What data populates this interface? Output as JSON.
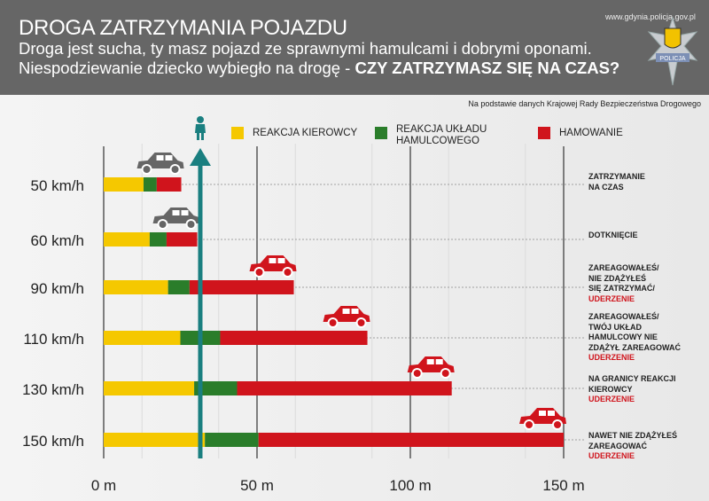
{
  "header": {
    "title": "DROGA ZATRZYMANIA POJAZDU",
    "line1": "Droga jest sucha, ty masz pojazd ze sprawnymi hamulcami i dobrymi oponami.",
    "line2_plain": "Niespodziewanie dziecko wybiegło na drogę - ",
    "line2_bold": "CZY ZATRZYMASZ SIĘ NA CZAS?",
    "url": "www.gdynia.policja.gov.pl",
    "badge": "POLICJA"
  },
  "source": "Na podstawie danych Krajowej Rady Bezpieczeństwa Drogowego",
  "colors": {
    "reaction": "#f5c800",
    "brake_system": "#2a7d2a",
    "braking": "#d0141c",
    "child": "#1a7f80"
  },
  "chart_data": {
    "type": "bar",
    "stacked": true,
    "orientation": "horizontal",
    "title": "DROGA ZATRZYMANIA POJAZDU",
    "categories": [
      "50 km/h",
      "60 km/h",
      "90 km/h",
      "110 km/h",
      "130 km/h",
      "150 km/h"
    ],
    "series": [
      {
        "name": "REAKCJA KIEROWCY",
        "values": [
          13,
          15,
          21,
          25,
          29.5,
          33
        ]
      },
      {
        "name": "REAKCJA UKŁADU HAMULCOWEGO",
        "values": [
          4.3,
          5.5,
          7,
          13,
          14,
          17.5
        ]
      },
      {
        "name": "HAMOWANIE",
        "values": [
          8,
          10,
          34,
          48,
          70,
          99.5
        ]
      }
    ],
    "child_position_m": 31.5,
    "xlim": [
      0,
      150
    ],
    "xticks": [
      "0 m",
      "50 m",
      "100 m",
      "150 m"
    ],
    "xtick_values": [
      0,
      50,
      100,
      150
    ],
    "legend": "top",
    "outcomes": [
      {
        "lines": [
          "ZATRZYMANIE",
          "NA CZAS"
        ],
        "impact": ""
      },
      {
        "lines": [
          "DOTKNIĘCIE"
        ],
        "impact": ""
      },
      {
        "lines": [
          "ZAREAGOWAŁEŚ/",
          "NIE ZDĄŻYŁEŚ",
          "SIĘ ZATRZYMAĆ/"
        ],
        "impact": "UDERZENIE"
      },
      {
        "lines": [
          "ZAREAGOWAŁEŚ/",
          "TWÓJ UKŁAD",
          "HAMULCOWY NIE",
          "ZDĄŻYŁ ZAREAGOWAĆ"
        ],
        "impact": "UDERZENIE"
      },
      {
        "lines": [
          "NA GRANICY REAKCJI",
          "KIEROWCY"
        ],
        "impact": "UDERZENIE"
      },
      {
        "lines": [
          "NAWET NIE ZDĄŻYŁEŚ",
          "ZAREAGOWAĆ"
        ],
        "impact": "UDERZENIE"
      }
    ]
  }
}
